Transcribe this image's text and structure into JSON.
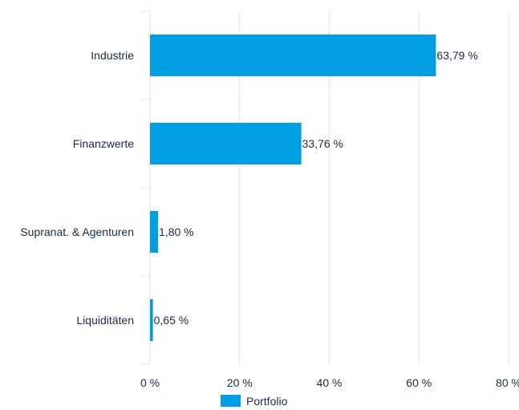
{
  "chart_data": {
    "type": "bar",
    "orientation": "horizontal",
    "categories": [
      "Industrie",
      "Finanzwerte",
      "Supranat. & Agenturen",
      "Liquiditäten"
    ],
    "series": [
      {
        "name": "Portfolio",
        "values": [
          63.79,
          33.76,
          1.8,
          0.65
        ],
        "value_labels": [
          "63,79 %",
          "33,76 %",
          "1,80 %",
          "0,65 %"
        ]
      }
    ],
    "xlim": [
      0,
      80
    ],
    "x_ticks": [
      0,
      20,
      40,
      60,
      80
    ],
    "x_tick_labels": [
      "0 %",
      "20 %",
      "40 %",
      "60 %",
      "80 %"
    ],
    "grid": true,
    "legend_position": "bottom",
    "colors": {
      "bar": "#009fe3",
      "grid": "#dde3ea",
      "text": "#1a2b4a"
    }
  }
}
